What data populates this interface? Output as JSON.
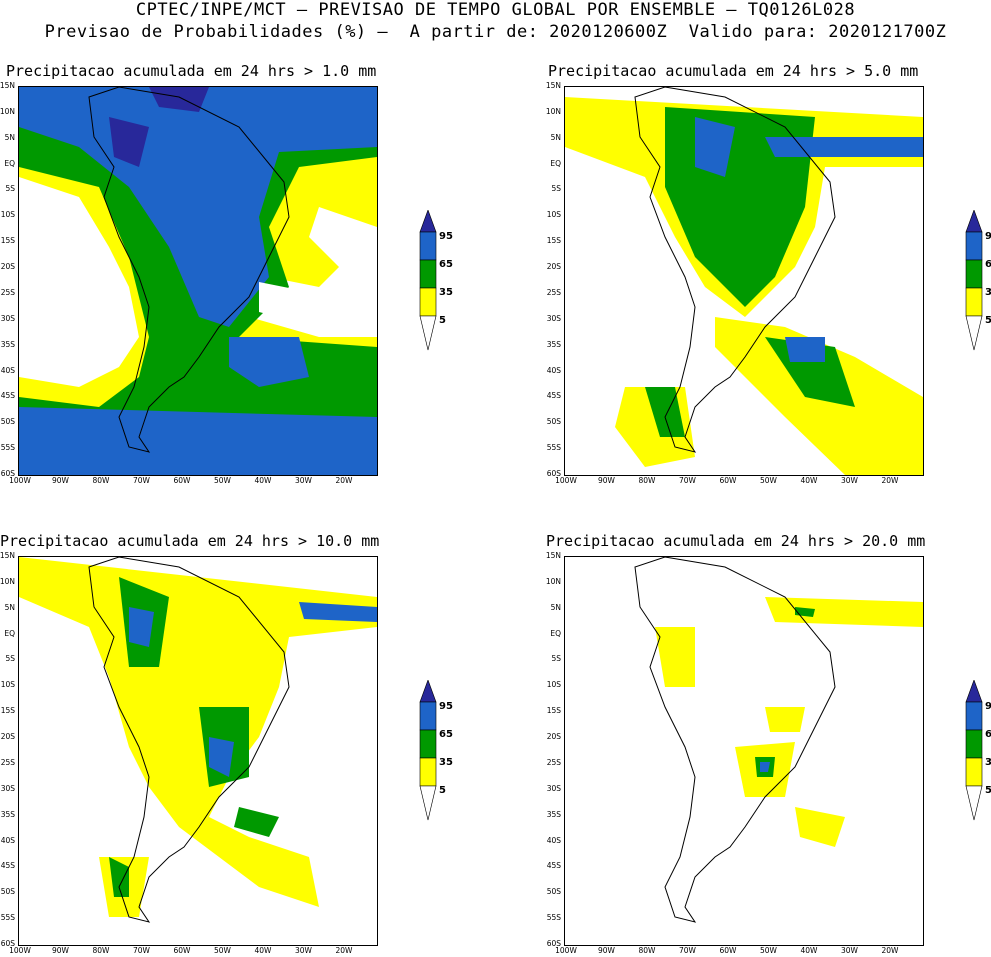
{
  "header": {
    "line1": "CPTEC/INPE/MCT — PREVISAO DE TEMPO GLOBAL POR ENSEMBLE — TQ0126L028",
    "line2": "Previsao de Probabilidades (%) —  A partir de: 2020120600Z  Valido para: 2020121700Z"
  },
  "axes": {
    "lat_labels": [
      "15N",
      "10N",
      "5N",
      "EQ",
      "5S",
      "10S",
      "15S",
      "20S",
      "25S",
      "30S",
      "35S",
      "40S",
      "45S",
      "50S",
      "55S",
      "60S"
    ],
    "lon_labels": [
      "100W",
      "90W",
      "80W",
      "70W",
      "60W",
      "50W",
      "40W",
      "30W",
      "20W"
    ]
  },
  "legend": {
    "levels": [
      "95",
      "65",
      "35",
      "5"
    ],
    "colors": {
      "c5": "#ffff00",
      "c35": "#009900",
      "c65": "#1e64c8",
      "c95": "#28289a"
    }
  },
  "panels": [
    {
      "title": "Precipitacao acumulada em 24 hrs > 1.0 mm"
    },
    {
      "title": "Precipitacao acumulada em 24 hrs > 5.0 mm"
    },
    {
      "title": "Precipitacao acumulada em 24 hrs > 10.0 mm"
    },
    {
      "title": "Precipitacao acumulada em 24 hrs > 20.0 mm"
    }
  ]
}
